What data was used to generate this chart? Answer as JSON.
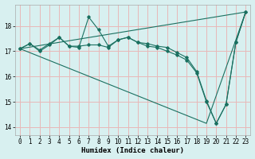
{
  "xlabel": "Humidex (Indice chaleur)",
  "bg_color": "#d8f0f0",
  "grid_color": "#e8b8b8",
  "line_color": "#1a7060",
  "xlim": [
    -0.5,
    23.5
  ],
  "ylim": [
    13.7,
    18.85
  ],
  "yticks": [
    14,
    15,
    16,
    17,
    18
  ],
  "xticks": [
    0,
    1,
    2,
    3,
    4,
    5,
    6,
    7,
    8,
    9,
    10,
    11,
    12,
    13,
    14,
    15,
    16,
    17,
    18,
    19,
    20,
    21,
    22,
    23
  ],
  "line1_x": [
    0,
    1,
    2,
    3,
    4,
    5,
    6,
    7,
    8,
    9,
    10,
    11,
    12,
    13,
    14,
    15,
    16,
    17,
    18,
    19,
    20,
    21,
    22,
    23
  ],
  "line1_y": [
    17.1,
    17.3,
    17.05,
    17.3,
    17.55,
    17.2,
    17.2,
    17.25,
    17.25,
    17.15,
    17.45,
    17.55,
    17.35,
    17.3,
    17.2,
    17.15,
    16.95,
    16.75,
    16.2,
    15.05,
    14.15,
    14.9,
    17.35,
    18.55
  ],
  "line2_x": [
    0,
    1,
    2,
    3,
    4,
    5,
    6,
    7,
    8,
    9,
    10,
    11,
    12,
    13,
    14,
    15,
    16,
    17,
    18,
    19,
    20,
    21,
    22,
    23
  ],
  "line2_y": [
    17.1,
    17.3,
    17.0,
    17.25,
    17.55,
    17.2,
    17.15,
    18.35,
    17.85,
    17.2,
    17.45,
    17.55,
    17.35,
    17.2,
    17.15,
    17.0,
    16.85,
    16.65,
    16.15,
    15.0,
    14.15,
    14.9,
    17.35,
    18.55
  ],
  "line3_x": [
    0,
    23
  ],
  "line3_y": [
    17.1,
    18.55
  ],
  "line4_x": [
    0,
    19,
    23
  ],
  "line4_y": [
    17.1,
    14.15,
    18.55
  ]
}
